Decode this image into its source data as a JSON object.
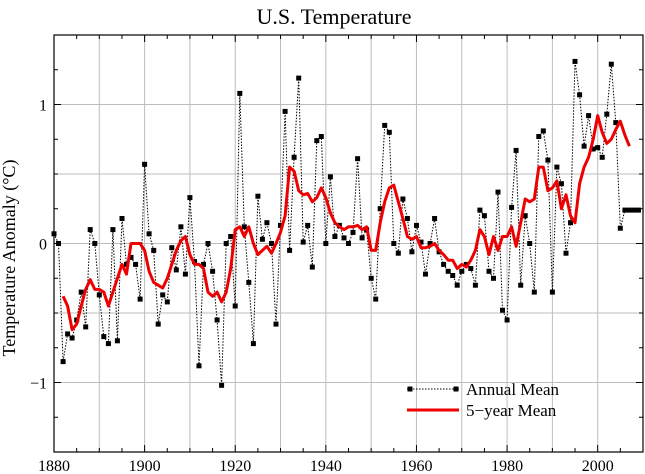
{
  "chart_data": {
    "type": "line",
    "title": "U.S. Temperature",
    "ylabel": "Temperature Anomaly (°C)",
    "xlabel": "",
    "xlim": [
      1880,
      2010
    ],
    "ylim": [
      -1.5,
      1.5
    ],
    "x_ticks": [
      1880,
      1900,
      1920,
      1940,
      1960,
      1980,
      2000
    ],
    "y_ticks": [
      -1,
      0,
      1
    ],
    "grid": true,
    "legend_position": "bottom-right",
    "series": [
      {
        "name": "Annual Mean",
        "style": "dotted-square-markers",
        "color": "#000000",
        "x": [
          1880,
          1881,
          1882,
          1883,
          1884,
          1885,
          1886,
          1887,
          1888,
          1889,
          1890,
          1891,
          1892,
          1893,
          1894,
          1895,
          1896,
          1897,
          1898,
          1899,
          1900,
          1901,
          1902,
          1903,
          1904,
          1905,
          1906,
          1907,
          1908,
          1909,
          1910,
          1911,
          1912,
          1913,
          1914,
          1915,
          1916,
          1917,
          1918,
          1919,
          1920,
          1921,
          1922,
          1923,
          1924,
          1925,
          1926,
          1927,
          1928,
          1929,
          1930,
          1931,
          1932,
          1933,
          1934,
          1935,
          1936,
          1937,
          1938,
          1939,
          1940,
          1941,
          1942,
          1943,
          1944,
          1945,
          1946,
          1947,
          1948,
          1949,
          1950,
          1951,
          1952,
          1953,
          1954,
          1955,
          1956,
          1957,
          1958,
          1959,
          1960,
          1961,
          1962,
          1963,
          1964,
          1965,
          1966,
          1967,
          1968,
          1969,
          1970,
          1971,
          1972,
          1973,
          1974,
          1975,
          1976,
          1977,
          1978,
          1979,
          1980,
          1981,
          1982,
          1983,
          1984,
          1985,
          1986,
          1987,
          1988,
          1989,
          1990,
          1991,
          1992,
          1993,
          1994,
          1995,
          1996,
          1997,
          1998,
          1999,
          2000,
          2001,
          2002,
          2003,
          2004,
          2005,
          2006,
          2007,
          2008,
          2009
        ],
        "values": [
          0.07,
          0.0,
          -0.85,
          -0.65,
          -0.68,
          -0.55,
          -0.35,
          -0.6,
          0.1,
          0.0,
          -0.37,
          -0.67,
          -0.72,
          0.1,
          -0.7,
          0.18,
          -0.15,
          -0.1,
          -0.15,
          -0.4,
          0.57,
          0.07,
          -0.05,
          -0.58,
          -0.37,
          -0.42,
          -0.03,
          -0.19,
          0.12,
          -0.22,
          0.33,
          -0.13,
          -0.88,
          -0.15,
          0.0,
          -0.2,
          -0.55,
          -1.02,
          0.0,
          0.05,
          -0.45,
          1.08,
          0.12,
          -0.28,
          -0.72,
          0.34,
          0.03,
          0.15,
          0.0,
          -0.58,
          0.13,
          0.95,
          -0.05,
          0.62,
          1.19,
          0.01,
          0.13,
          -0.17,
          0.74,
          0.77,
          0.0,
          0.48,
          0.05,
          0.13,
          0.04,
          0.0,
          0.08,
          0.61,
          0.04,
          0.1,
          -0.25,
          -0.4,
          0.25,
          0.85,
          0.8,
          0.0,
          -0.07,
          0.32,
          0.18,
          -0.06,
          0.13,
          0.01,
          -0.22,
          0.0,
          0.18,
          -0.06,
          -0.15,
          -0.2,
          -0.23,
          -0.3,
          -0.2,
          -0.15,
          -0.18,
          -0.3,
          0.24,
          0.2,
          -0.2,
          -0.25,
          0.37,
          -0.48,
          -0.55,
          0.26,
          0.67,
          -0.3,
          0.2,
          0.0,
          -0.35,
          0.77,
          0.81,
          0.6,
          -0.35,
          0.55,
          0.43,
          -0.07,
          0.15,
          1.31,
          1.07,
          0.7,
          0.92,
          0.68,
          0.69,
          0.62,
          0.93,
          1.29,
          0.87,
          0.11,
          0.24,
          0.24,
          0.24,
          0.24
        ],
        "values_note": ""
      },
      {
        "name": "5−year Mean",
        "style": "solid",
        "color": "#ee0000",
        "x": [
          1882,
          1883,
          1884,
          1885,
          1886,
          1887,
          1888,
          1889,
          1890,
          1891,
          1892,
          1893,
          1894,
          1895,
          1896,
          1897,
          1898,
          1899,
          1900,
          1901,
          1902,
          1903,
          1904,
          1905,
          1906,
          1907,
          1908,
          1909,
          1910,
          1911,
          1912,
          1913,
          1914,
          1915,
          1916,
          1917,
          1918,
          1919,
          1920,
          1921,
          1922,
          1923,
          1924,
          1925,
          1926,
          1927,
          1928,
          1929,
          1930,
          1931,
          1932,
          1933,
          1934,
          1935,
          1936,
          1937,
          1938,
          1939,
          1940,
          1941,
          1942,
          1943,
          1944,
          1945,
          1946,
          1947,
          1948,
          1949,
          1950,
          1951,
          1952,
          1953,
          1954,
          1955,
          1956,
          1957,
          1958,
          1959,
          1960,
          1961,
          1962,
          1963,
          1964,
          1965,
          1966,
          1967,
          1968,
          1969,
          1970,
          1971,
          1972,
          1973,
          1974,
          1975,
          1976,
          1977,
          1978,
          1979,
          1980,
          1981,
          1982,
          1983,
          1984,
          1985,
          1986,
          1987,
          1988,
          1989,
          1990,
          1991,
          1992,
          1993,
          1994,
          1995,
          1996,
          1997,
          1998,
          1999,
          2000,
          2001,
          2002,
          2003,
          2004,
          2005,
          2006,
          2007
        ],
        "values": [
          -0.38,
          -0.45,
          -0.62,
          -0.58,
          -0.45,
          -0.33,
          -0.26,
          -0.33,
          -0.33,
          -0.35,
          -0.45,
          -0.35,
          -0.25,
          -0.15,
          -0.22,
          0.0,
          0.0,
          0.0,
          -0.05,
          -0.2,
          -0.28,
          -0.3,
          -0.32,
          -0.25,
          -0.15,
          -0.05,
          0.02,
          0.05,
          -0.08,
          -0.15,
          -0.15,
          -0.18,
          -0.35,
          -0.38,
          -0.35,
          -0.42,
          -0.35,
          -0.18,
          0.1,
          0.12,
          0.05,
          0.12,
          0.0,
          -0.08,
          -0.05,
          -0.02,
          -0.07,
          0.0,
          0.08,
          0.2,
          0.55,
          0.52,
          0.38,
          0.35,
          0.36,
          0.3,
          0.33,
          0.4,
          0.33,
          0.22,
          0.15,
          0.12,
          0.1,
          0.12,
          0.12,
          0.13,
          0.1,
          0.12,
          -0.05,
          -0.05,
          0.15,
          0.3,
          0.4,
          0.42,
          0.3,
          0.18,
          0.05,
          0.03,
          0.05,
          -0.03,
          -0.03,
          -0.02,
          0.0,
          -0.05,
          -0.08,
          -0.12,
          -0.12,
          -0.18,
          -0.15,
          -0.17,
          -0.12,
          -0.05,
          0.1,
          0.05,
          -0.08,
          0.05,
          -0.05,
          0.05,
          0.05,
          0.12,
          -0.02,
          0.15,
          0.32,
          0.3,
          0.32,
          0.55,
          0.55,
          0.38,
          0.4,
          0.45,
          0.25,
          0.35,
          0.2,
          0.15,
          0.43,
          0.55,
          0.62,
          0.75,
          0.92,
          0.8,
          0.72,
          0.75,
          0.82,
          0.88,
          0.78,
          0.7
        ],
        "values_note": ""
      }
    ]
  },
  "legend": {
    "annual_label": "Annual Mean",
    "five_year_label": "5−year Mean"
  }
}
